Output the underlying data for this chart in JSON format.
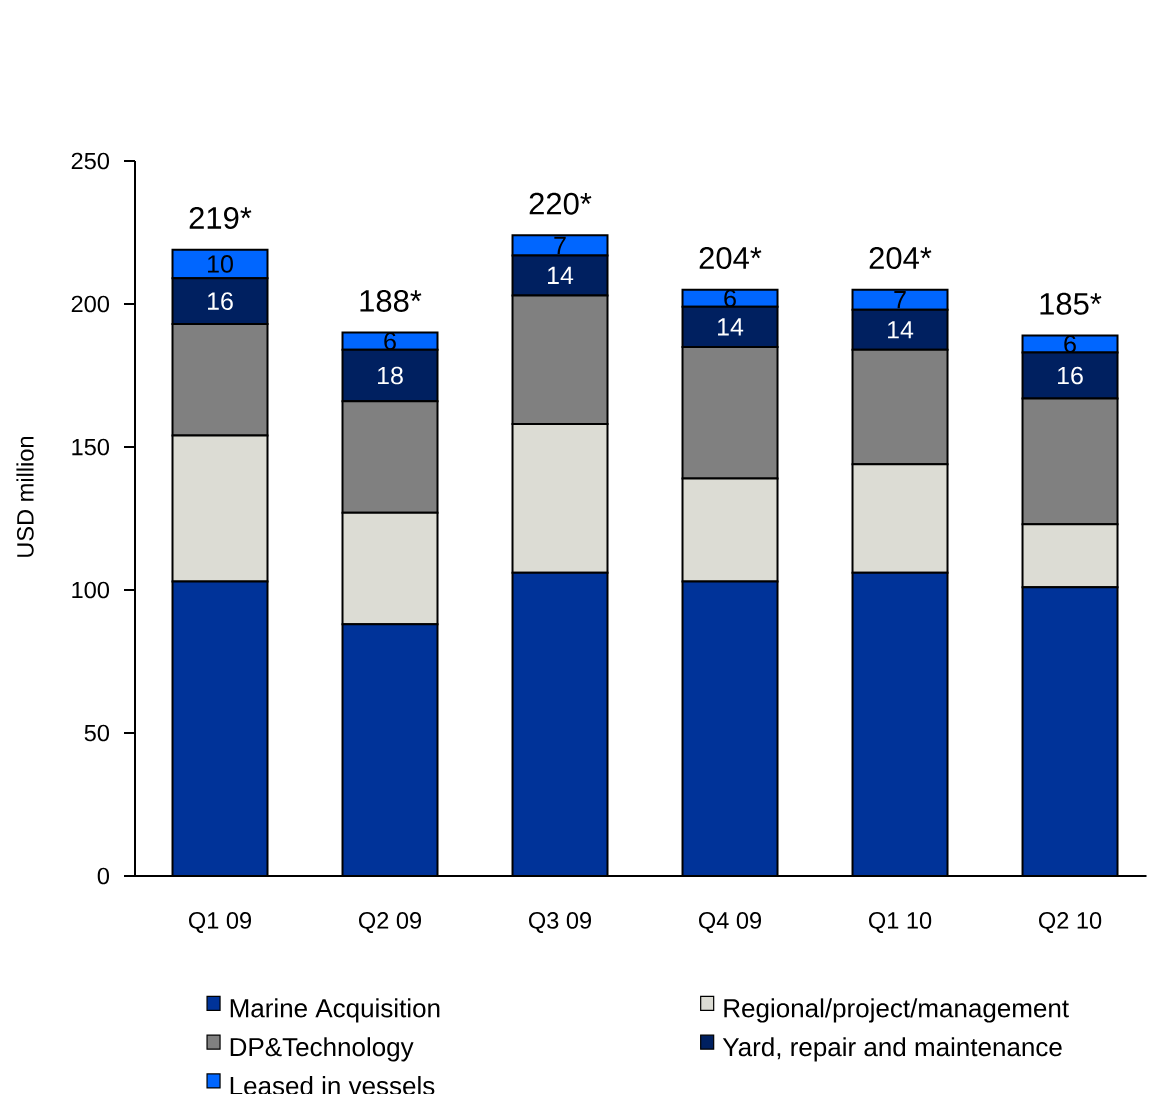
{
  "chart_data": {
    "type": "bar",
    "stacked": true,
    "ylabel": "USD million",
    "categories": [
      "Q1 09",
      "Q2 09",
      "Q3 09",
      "Q4 09",
      "Q1 10",
      "Q2 10"
    ],
    "series": [
      {
        "name": "Marine Acquisition",
        "color": "#003399",
        "values": [
          103,
          88,
          106,
          103,
          106,
          101
        ]
      },
      {
        "name": "Regional/project/management",
        "color": "#dcdcd4",
        "values": [
          51,
          39,
          52,
          36,
          38,
          22
        ]
      },
      {
        "name": "DP&Technology",
        "color": "#808080",
        "values": [
          39,
          39,
          45,
          46,
          40,
          44
        ]
      },
      {
        "name": "Yard, repair and maintenance",
        "color": "#002060",
        "values": [
          16,
          18,
          14,
          14,
          14,
          16
        ],
        "value_labels": [
          "16",
          "18",
          "14",
          "14",
          "14",
          "16"
        ]
      },
      {
        "name": "Leased in vessels",
        "color": "#0066ff",
        "values": [
          10,
          6,
          7,
          6,
          7,
          6
        ],
        "value_labels": [
          "10",
          "6",
          "7",
          "6",
          "7",
          "6"
        ]
      }
    ],
    "annotations": [
      {
        "text": "219*",
        "x": "Q1 09",
        "y": 219
      },
      {
        "text": "188*",
        "x": "Q2 09",
        "y": 190
      },
      {
        "text": "220*",
        "x": "Q3 09",
        "y": 224
      },
      {
        "text": "204*",
        "x": "Q4 09",
        "y": 205
      },
      {
        "text": "204*",
        "x": "Q1 10",
        "y": 205
      },
      {
        "text": "185*",
        "x": "Q2 10",
        "y": 189
      }
    ],
    "ylim": [
      0,
      250
    ],
    "yticks": [
      0,
      50,
      100,
      150,
      200,
      250
    ],
    "legend": "bottom"
  }
}
